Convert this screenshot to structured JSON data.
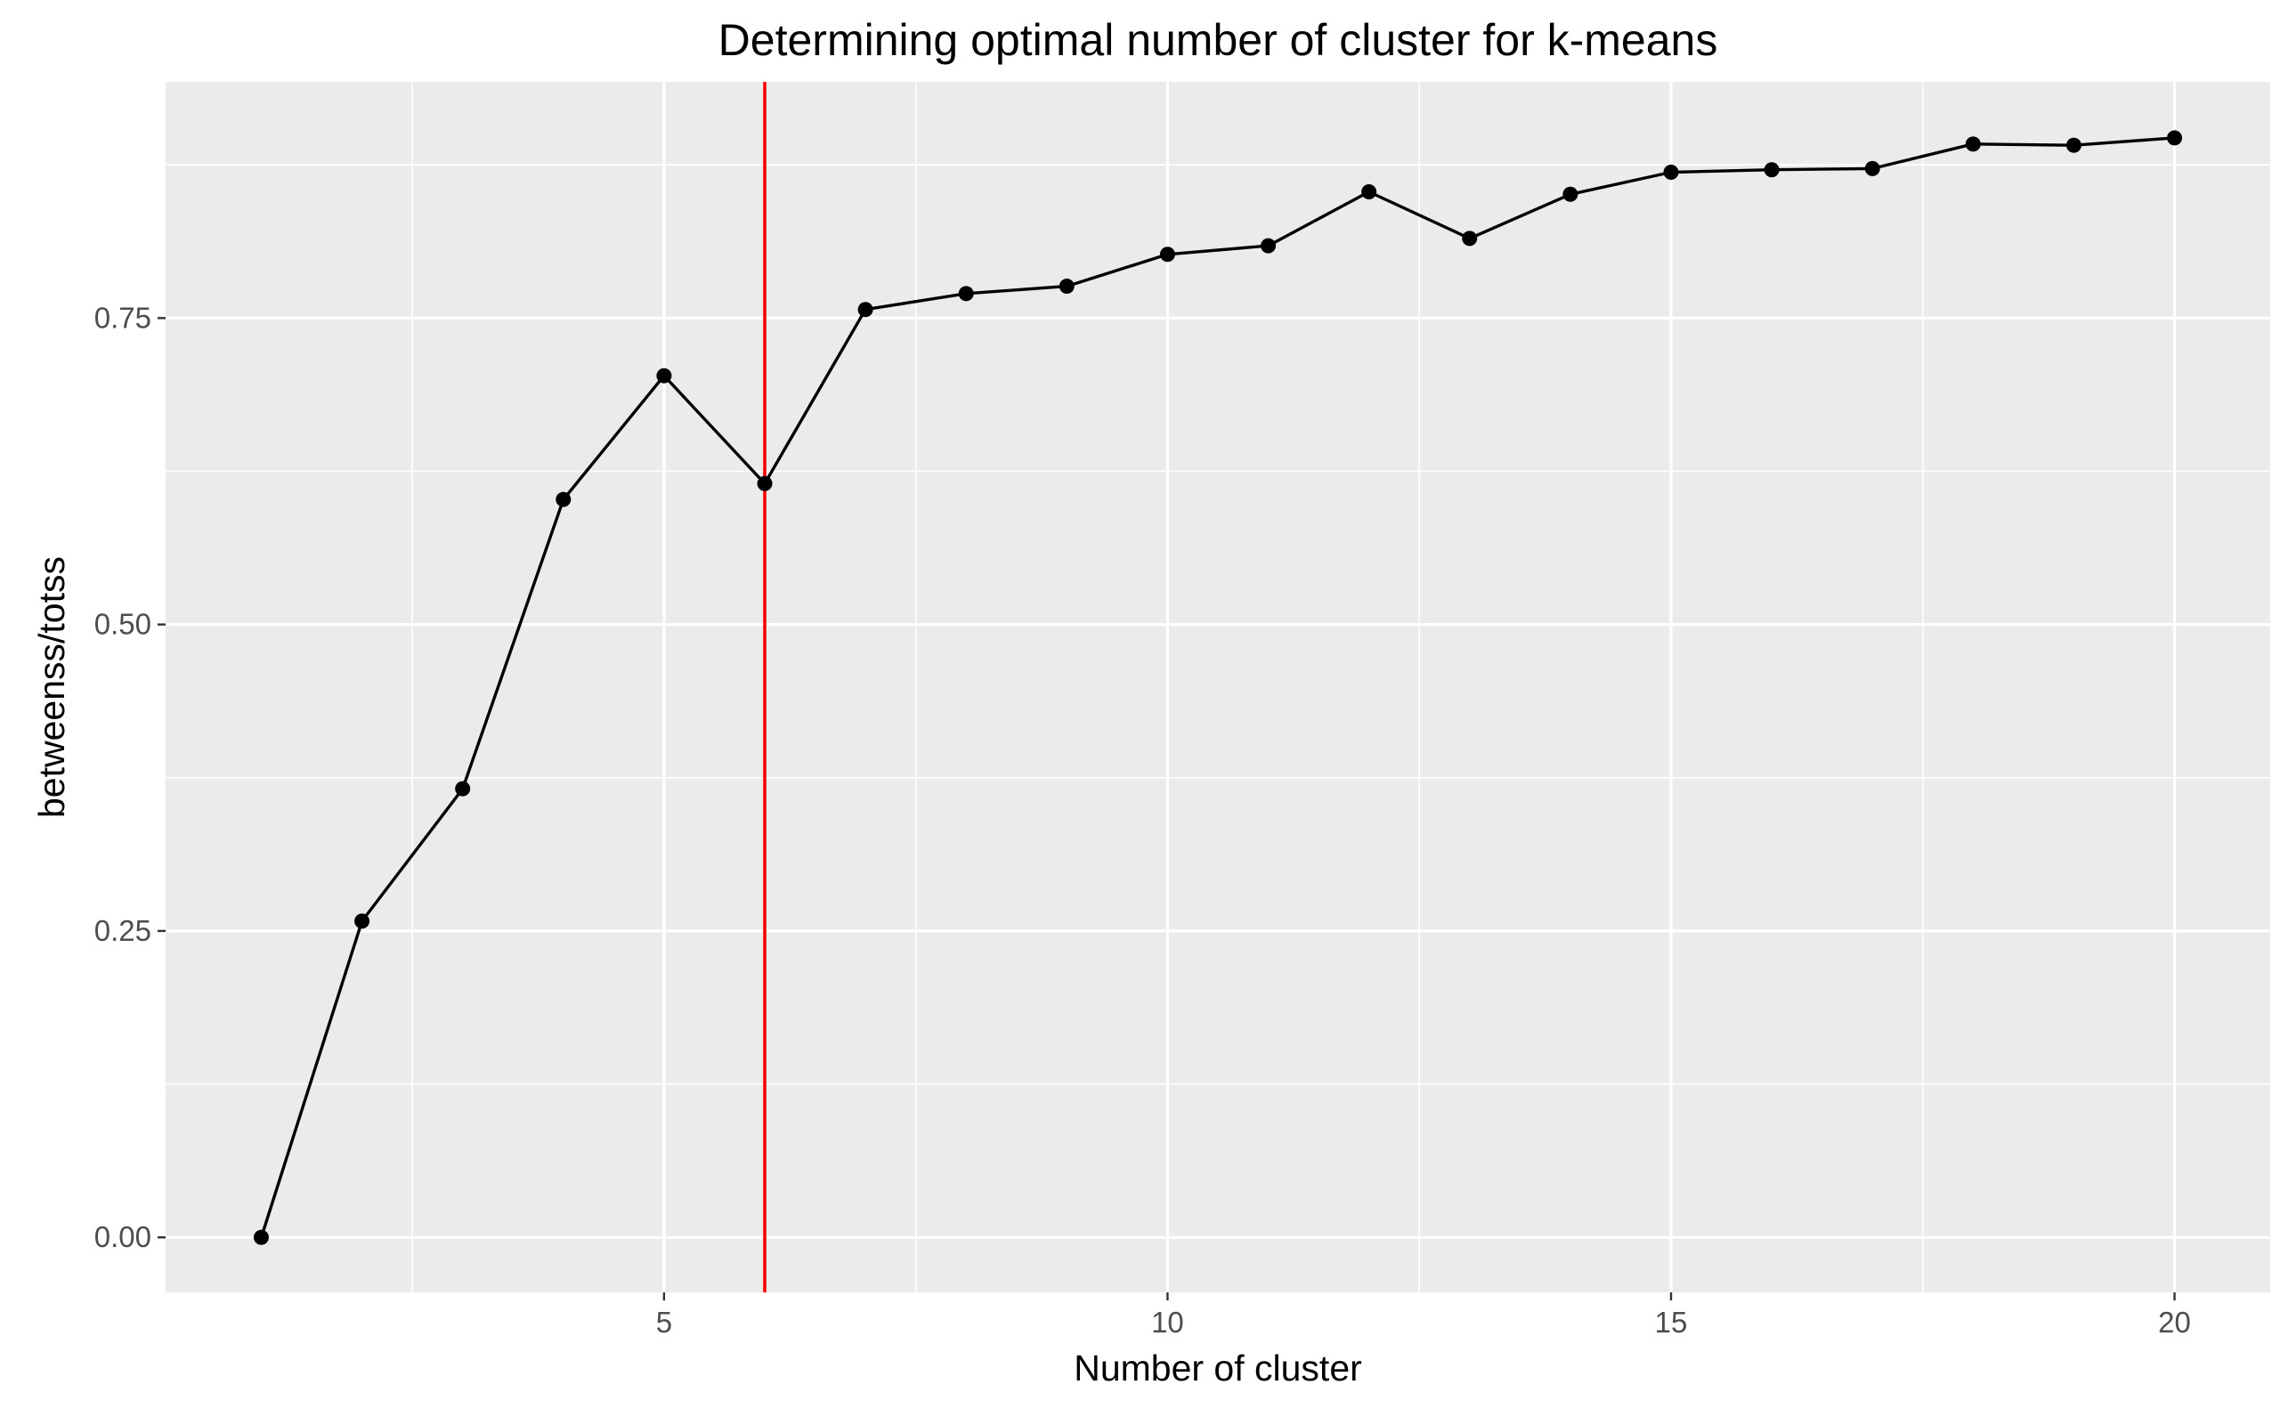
{
  "chart_data": {
    "type": "line",
    "title": "Determining optimal number of cluster for k-means",
    "xlabel": "Number of cluster",
    "ylabel": "betweenss/totss",
    "xlim": [
      0.05,
      20.95
    ],
    "ylim": [
      -0.0449,
      0.9427
    ],
    "x_ticks": [
      5,
      10,
      15,
      20
    ],
    "x_tick_labels": [
      "5",
      "10",
      "15",
      "20"
    ],
    "y_ticks": [
      0,
      0.25,
      0.5,
      0.75
    ],
    "y_tick_labels": [
      "0.00",
      "0.25",
      "0.50",
      "0.75"
    ],
    "grid": true,
    "legend": "none",
    "series": [
      {
        "x": [
          1,
          2,
          3,
          4,
          5,
          6,
          7,
          8,
          9,
          10,
          11,
          12,
          13,
          14,
          15,
          16,
          17,
          18,
          19,
          20
        ],
        "values": [
          0.0,
          0.258,
          0.366,
          0.602,
          0.703,
          0.615,
          0.757,
          0.77,
          0.776,
          0.802,
          0.809,
          0.853,
          0.815,
          0.851,
          0.869,
          0.871,
          0.872,
          0.892,
          0.891,
          0.897
        ],
        "color": "#000000"
      }
    ],
    "reference_line": {
      "orientation": "vertical",
      "x": 6,
      "color": "#ff0000"
    },
    "panel_background": "#ebebeb",
    "grid_color": "#ffffff"
  }
}
